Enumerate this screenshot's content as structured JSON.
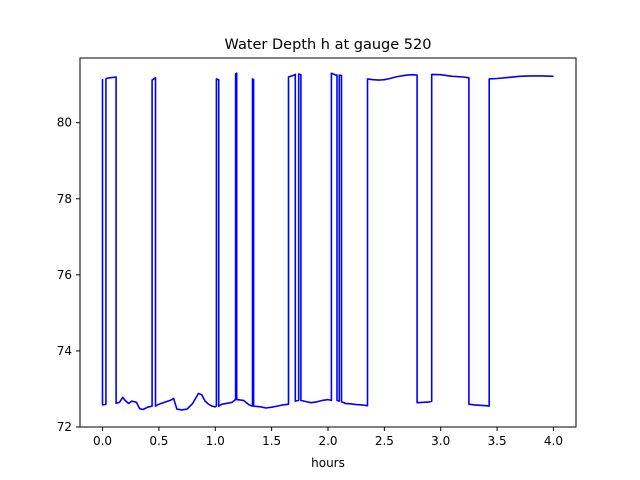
{
  "chart_data": {
    "type": "line",
    "title": "Water Depth h at gauge 520",
    "xlabel": "hours",
    "ylabel": "",
    "xlim": [
      -0.2,
      4.2
    ],
    "ylim": [
      72,
      81.7
    ],
    "xticks": [
      0.0,
      0.5,
      1.0,
      1.5,
      2.0,
      2.5,
      3.0,
      3.5,
      4.0
    ],
    "xtick_labels": [
      "0.0",
      "0.5",
      "1.0",
      "1.5",
      "2.0",
      "2.5",
      "3.0",
      "3.5",
      "4.0"
    ],
    "yticks": [
      72,
      74,
      76,
      78,
      80
    ],
    "ytick_labels": [
      "72",
      "74",
      "76",
      "78",
      "80"
    ],
    "grid": false,
    "series": [
      {
        "color": "#0000ff",
        "x": [
          0.0,
          0.0,
          0.03,
          0.03,
          0.04,
          0.12,
          0.12,
          0.15,
          0.18,
          0.2,
          0.23,
          0.26,
          0.3,
          0.33,
          0.36,
          0.4,
          0.44,
          0.44,
          0.47,
          0.47,
          0.5,
          0.55,
          0.6,
          0.63,
          0.66,
          0.7,
          0.75,
          0.8,
          0.85,
          0.88,
          0.91,
          0.94,
          0.97,
          1.0,
          1.01,
          1.01,
          1.03,
          1.03,
          1.06,
          1.1,
          1.15,
          1.17,
          1.18,
          1.18,
          1.19,
          1.19,
          1.25,
          1.3,
          1.33,
          1.33,
          1.34,
          1.34,
          1.4,
          1.45,
          1.5,
          1.55,
          1.6,
          1.65,
          1.65,
          1.7,
          1.71,
          1.71,
          1.74,
          1.74,
          1.76,
          1.76,
          1.8,
          1.85,
          1.9,
          1.95,
          2.0,
          2.03,
          2.03,
          2.07,
          2.08,
          2.08,
          2.1,
          2.1,
          2.12,
          2.12,
          2.15,
          2.15,
          2.2,
          2.25,
          2.3,
          2.35,
          2.35,
          2.4,
          2.45,
          2.5,
          2.55,
          2.6,
          2.65,
          2.7,
          2.75,
          2.79,
          2.79,
          2.85,
          2.9,
          2.92,
          2.92,
          3.0,
          3.1,
          3.2,
          3.25,
          3.25,
          3.3,
          3.35,
          3.4,
          3.43,
          3.43,
          3.5,
          3.6,
          3.7,
          3.8,
          3.9,
          4.0
        ],
        "y": [
          81.15,
          72.58,
          72.6,
          81.15,
          81.17,
          81.2,
          72.62,
          72.65,
          72.78,
          72.7,
          72.62,
          72.68,
          72.65,
          72.48,
          72.46,
          72.52,
          72.55,
          81.12,
          81.18,
          72.55,
          72.6,
          72.65,
          72.7,
          72.75,
          72.47,
          72.45,
          72.47,
          72.62,
          72.88,
          72.85,
          72.68,
          72.6,
          72.55,
          72.53,
          72.55,
          81.15,
          81.13,
          72.55,
          72.6,
          72.62,
          72.65,
          72.7,
          72.72,
          81.28,
          81.3,
          72.72,
          72.7,
          72.58,
          72.55,
          81.15,
          81.13,
          72.55,
          72.53,
          72.5,
          72.52,
          72.55,
          72.58,
          72.6,
          81.2,
          81.25,
          81.27,
          72.68,
          72.7,
          81.28,
          81.26,
          72.7,
          72.67,
          72.64,
          72.66,
          72.7,
          72.72,
          72.7,
          81.3,
          81.25,
          81.25,
          72.7,
          72.68,
          81.25,
          81.24,
          72.66,
          72.63,
          72.62,
          72.61,
          72.59,
          72.58,
          72.56,
          81.15,
          81.13,
          81.12,
          81.13,
          81.16,
          81.2,
          81.23,
          81.25,
          81.26,
          81.25,
          72.64,
          72.65,
          72.66,
          72.68,
          81.27,
          81.26,
          81.22,
          81.2,
          81.18,
          72.6,
          72.58,
          72.57,
          72.56,
          72.55,
          81.15,
          81.16,
          81.19,
          81.22,
          81.23,
          81.23,
          81.22
        ]
      }
    ]
  }
}
